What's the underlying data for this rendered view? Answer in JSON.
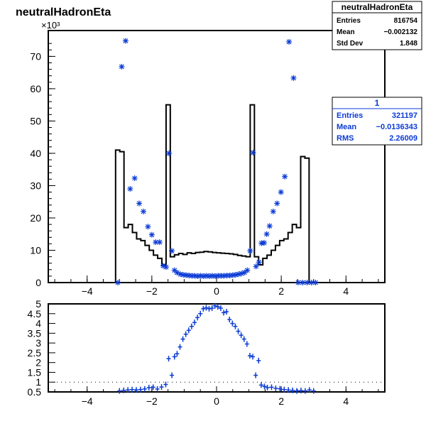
{
  "title": "neutralHadronEta",
  "exponent_label": "×10³",
  "stats_box_1": {
    "title": "neutralHadronEta",
    "rows": [
      {
        "label": "Entries",
        "value": "816754"
      },
      {
        "label": "Mean",
        "value": "−0.002132"
      },
      {
        "label": "Std Dev",
        "value": "1.848"
      }
    ]
  },
  "stats_box_2": {
    "title": "1",
    "rows": [
      {
        "label": "Entries",
        "value": "321197"
      },
      {
        "label": "Mean",
        "value": "−0.0136343"
      },
      {
        "label": "RMS",
        "value": "2.26009"
      }
    ]
  },
  "colors": {
    "hist": "#000000",
    "markers": "#0b3bd6",
    "ref_line": "#000000"
  },
  "chart_data": [
    {
      "type": "line",
      "subtype": "histogram-with-markers",
      "title": "neutralHadronEta",
      "xlim": [
        -5.2,
        5.2
      ],
      "ylim": [
        0,
        78000
      ],
      "x_ticks": [
        -4,
        -2,
        0,
        2,
        4
      ],
      "x_tick_labels": [
        "−4",
        "−2",
        "0",
        "2",
        "4"
      ],
      "y_ticks": [
        0,
        10000,
        20000,
        30000,
        40000,
        50000,
        60000,
        70000
      ],
      "y_tick_labels": [
        "0",
        "10",
        "20",
        "30",
        "40",
        "50",
        "60",
        "70"
      ],
      "hist_bin_width": 0.13,
      "series": [
        {
          "style": "step",
          "x": [
            -3.055,
            -2.925,
            -2.795,
            -2.665,
            -2.535,
            -2.405,
            -2.275,
            -2.145,
            -2.015,
            -1.885,
            -1.755,
            -1.625,
            -1.495,
            -1.365,
            -1.235,
            -1.105,
            -0.975,
            -0.845,
            -0.715,
            -0.585,
            -0.455,
            -0.325,
            -0.195,
            -0.065,
            0.065,
            0.195,
            0.325,
            0.455,
            0.585,
            0.715,
            0.845,
            0.975,
            1.105,
            1.235,
            1.365,
            1.495,
            1.625,
            1.755,
            1.885,
            2.015,
            2.145,
            2.275,
            2.405,
            2.535,
            2.665,
            2.795,
            2.925,
            3.055
          ],
          "values": [
            41000,
            40500,
            17000,
            18000,
            15500,
            13500,
            13000,
            11500,
            10000,
            8500,
            7500,
            5500,
            55000,
            8000,
            8600,
            9000,
            8700,
            9200,
            9000,
            9300,
            9400,
            9600,
            9500,
            9300,
            9200,
            9100,
            9000,
            8900,
            8700,
            8400,
            8200,
            8000,
            55000,
            8000,
            5500,
            7500,
            8500,
            10000,
            11500,
            13000,
            13500,
            15500,
            18000,
            17000,
            39000,
            38500,
            0,
            0
          ]
        },
        {
          "style": "markers",
          "x": [
            -3.05,
            -2.93,
            -2.81,
            -2.67,
            -2.53,
            -2.39,
            -2.26,
            -2.12,
            -2.0,
            -1.88,
            -1.76,
            -1.65,
            -1.56,
            -1.47,
            -1.38,
            -1.3,
            -1.22,
            -1.12,
            -1.03,
            -0.94,
            -0.85,
            -0.76,
            -0.67,
            -0.58,
            -0.49,
            -0.4,
            -0.31,
            -0.22,
            -0.13,
            -0.04,
            0.05,
            0.14,
            0.23,
            0.32,
            0.41,
            0.5,
            0.59,
            0.68,
            0.77,
            0.86,
            0.95,
            1.04,
            1.13,
            1.22,
            1.31,
            1.39,
            1.47,
            1.55,
            1.64,
            1.75,
            1.87,
            1.99,
            2.11,
            2.24,
            2.38,
            2.52,
            2.66,
            2.8,
            2.93,
            3.06
          ],
          "values": [
            0,
            66800,
            74800,
            29000,
            32300,
            24500,
            22000,
            17300,
            14800,
            12500,
            12500,
            5200,
            4800,
            40000,
            9800,
            3800,
            3100,
            2600,
            2400,
            2300,
            2200,
            2100,
            2100,
            2000,
            2100,
            2000,
            2100,
            2000,
            2100,
            2000,
            2100,
            2100,
            2100,
            2200,
            2200,
            2300,
            2400,
            2600,
            2800,
            3100,
            3800,
            9800,
            40200,
            5000,
            6300,
            12200,
            12300,
            15000,
            17500,
            22000,
            24500,
            28000,
            32800,
            74500,
            63300,
            0,
            0,
            0,
            0,
            0
          ]
        }
      ]
    },
    {
      "type": "scatter",
      "subtype": "ratio-with-errorbars",
      "xlim": [
        -5.2,
        5.2
      ],
      "ylim": [
        0.5,
        5.0
      ],
      "x_ticks": [
        -4,
        -2,
        0,
        2,
        4
      ],
      "x_tick_labels": [
        "−4",
        "−2",
        "0",
        "2",
        "4"
      ],
      "y_ticks": [
        0.5,
        1,
        1.5,
        2,
        2.5,
        3,
        3.5,
        4,
        4.5,
        5
      ],
      "y_tick_labels": [
        "0.5",
        "1",
        "1.5",
        "2",
        "2.5",
        "3",
        "3.5",
        "4",
        "4.5",
        "5"
      ],
      "reference_line": 1,
      "x": [
        -3.0,
        -2.87,
        -2.74,
        -2.61,
        -2.48,
        -2.35,
        -2.22,
        -2.09,
        -1.96,
        -1.83,
        -1.7,
        -1.57,
        -1.48,
        -1.38,
        -1.3,
        -1.22,
        -1.13,
        -1.04,
        -0.95,
        -0.86,
        -0.77,
        -0.68,
        -0.59,
        -0.5,
        -0.41,
        -0.32,
        -0.23,
        -0.14,
        -0.05,
        0.04,
        0.13,
        0.22,
        0.31,
        0.4,
        0.49,
        0.58,
        0.67,
        0.76,
        0.85,
        0.94,
        1.03,
        1.12,
        1.21,
        1.3,
        1.38,
        1.48,
        1.57,
        1.7,
        1.83,
        1.96,
        2.09,
        2.22,
        2.35,
        2.48,
        2.61,
        2.74,
        2.87,
        3.0
      ],
      "values": [
        0.55,
        0.58,
        0.6,
        0.62,
        0.6,
        0.62,
        0.65,
        0.72,
        0.74,
        0.65,
        0.75,
        0.88,
        2.2,
        1.35,
        2.3,
        2.45,
        2.8,
        3.2,
        3.45,
        3.65,
        3.85,
        4.05,
        4.3,
        4.5,
        4.75,
        4.8,
        4.75,
        4.78,
        4.9,
        4.85,
        4.78,
        4.55,
        4.6,
        4.2,
        4.0,
        3.85,
        3.6,
        3.4,
        3.2,
        2.95,
        2.35,
        2.3,
        1.35,
        2.1,
        0.85,
        0.78,
        0.72,
        0.74,
        0.68,
        0.66,
        0.62,
        0.6,
        0.58,
        0.55,
        0.57,
        0.55,
        0.6,
        0.55
      ]
    }
  ]
}
